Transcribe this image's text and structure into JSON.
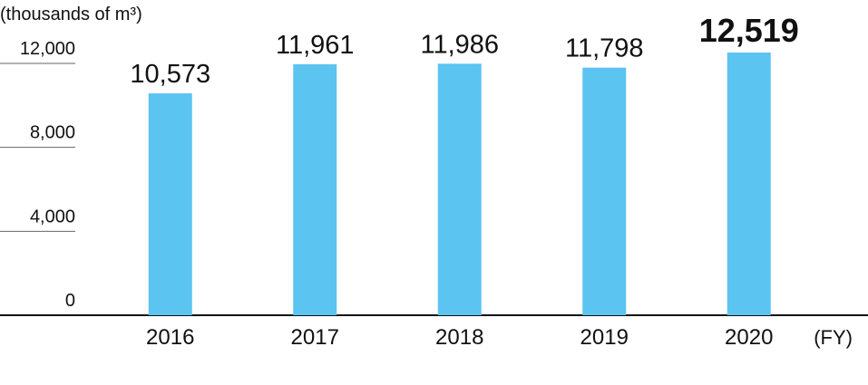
{
  "chart_data": {
    "type": "bar",
    "y_axis_label": "(thousands of m³)",
    "x_axis_label": "(FY)",
    "categories": [
      "2016",
      "2017",
      "2018",
      "2019",
      "2020"
    ],
    "values": [
      10573,
      11961,
      11986,
      11798,
      12519
    ],
    "value_labels": [
      "10,573",
      "11,961",
      "11,986",
      "11,798",
      "12,519"
    ],
    "color": "#5bc4f0",
    "ylim": [
      0,
      12000
    ],
    "yticks": [
      0,
      {
        "value": 4000,
        "label": "4,000"
      },
      {
        "value": 8000,
        "label": "8,000"
      },
      {
        "value": 12000,
        "label": "12,000"
      }
    ]
  }
}
